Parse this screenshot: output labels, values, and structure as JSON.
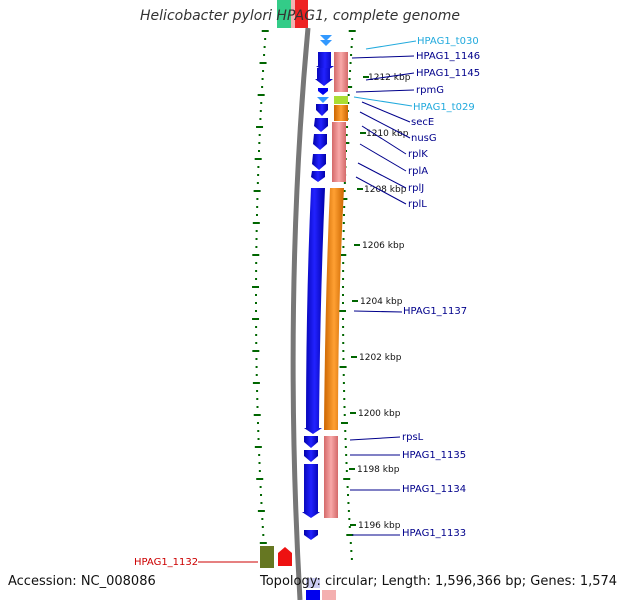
{
  "title": "Helicobacter pylori HPAG1, complete genome",
  "accession": "Accession: NC_008086",
  "topology": "Topology: circular; Length: 1,596,366 bp; Genes: 1,574",
  "colors": {
    "forward_gene": "#0000ee",
    "rna": "#3399ff",
    "gc_skew_orange": "#ff8800",
    "gc_skew_pink": "#f08a8a",
    "tick_green": "#006600",
    "label_red": "#cc0000",
    "label_blue": "#00008b",
    "label_cyan": "#22aadd"
  },
  "kbp_labels": [
    "1212 kbp",
    "1210 kbp",
    "1208 kbp",
    "1206 kbp",
    "1204 kbp",
    "1202 kbp",
    "1200 kbp",
    "1198 kbp",
    "1196 kbp"
  ],
  "gene_labels": [
    {
      "text": "HPAG1_t030",
      "color": "cyan"
    },
    {
      "text": "HPAG1_1146",
      "color": "blue"
    },
    {
      "text": "HPAG1_1145",
      "color": "blue"
    },
    {
      "text": "rpmG",
      "color": "blue"
    },
    {
      "text": "HPAG1_t029",
      "color": "cyan"
    },
    {
      "text": "secE",
      "color": "blue"
    },
    {
      "text": "nusG",
      "color": "blue"
    },
    {
      "text": "rplK",
      "color": "blue"
    },
    {
      "text": "rplA",
      "color": "blue"
    },
    {
      "text": "rplJ",
      "color": "blue"
    },
    {
      "text": "rplL",
      "color": "blue"
    },
    {
      "text": "HPAG1_1137",
      "color": "blue"
    },
    {
      "text": "rpsL",
      "color": "blue"
    },
    {
      "text": "HPAG1_1135",
      "color": "blue"
    },
    {
      "text": "HPAG1_1134",
      "color": "blue"
    },
    {
      "text": "HPAG1_1133",
      "color": "blue"
    },
    {
      "text": "HPAG1_1132",
      "color": "red"
    }
  ]
}
